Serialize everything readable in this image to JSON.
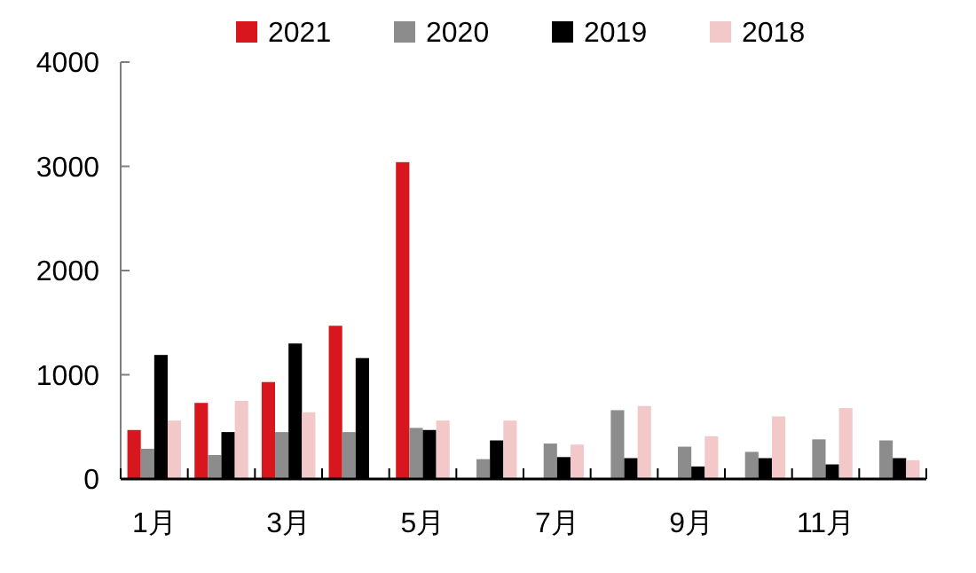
{
  "chart_data": {
    "type": "bar",
    "categories": [
      "1月",
      null,
      "3月",
      null,
      "5月",
      null,
      "7月",
      null,
      "9月",
      null,
      "11月",
      null
    ],
    "series": [
      {
        "name": "2021",
        "color": "#d7161d",
        "values": [
          470,
          730,
          930,
          1470,
          3040,
          null,
          null,
          null,
          null,
          null,
          null,
          null
        ]
      },
      {
        "name": "2020",
        "color": "#8c8c8c",
        "values": [
          290,
          230,
          450,
          450,
          490,
          190,
          340,
          660,
          310,
          260,
          380,
          370
        ]
      },
      {
        "name": "2019",
        "color": "#000000",
        "values": [
          1190,
          450,
          1300,
          1160,
          470,
          370,
          210,
          200,
          120,
          200,
          140,
          200
        ]
      },
      {
        "name": "2018",
        "color": "#f2c8c8",
        "values": [
          560,
          750,
          640,
          null,
          560,
          560,
          330,
          700,
          410,
          600,
          680,
          180
        ]
      }
    ],
    "ylim": [
      0,
      4000
    ],
    "yticks": [
      0,
      1000,
      2000,
      3000,
      4000
    ],
    "grid": false,
    "legend": "top"
  }
}
